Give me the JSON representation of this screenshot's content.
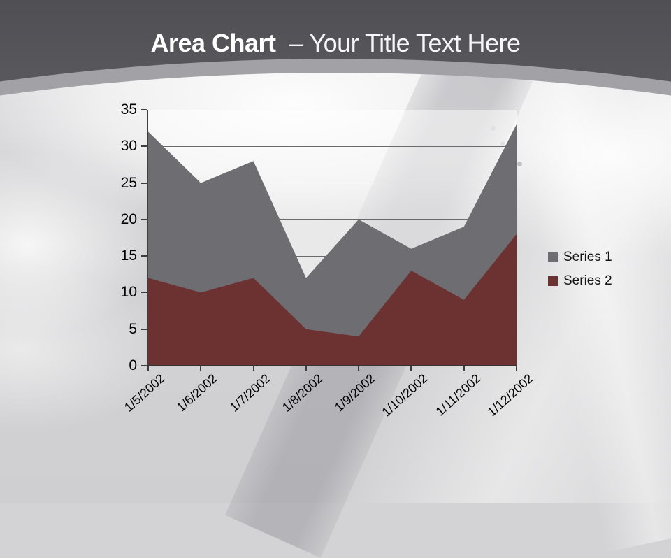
{
  "slide": {
    "title": {
      "bold": "Area Chart",
      "rest": "– Your Title Text Here"
    }
  },
  "chart_data": {
    "type": "area",
    "title": "",
    "categories": [
      "1/5/2002",
      "1/6/2002",
      "1/7/2002",
      "1/8/2002",
      "1/9/2002",
      "1/10/2002",
      "1/11/2002",
      "1/12/2002"
    ],
    "series": [
      {
        "name": "Series 1",
        "color": "#6e6d72",
        "values": [
          32,
          25,
          28,
          12,
          20,
          16,
          19,
          33
        ]
      },
      {
        "name": "Series 2",
        "color": "#6c3232",
        "values": [
          12,
          10,
          12,
          5,
          4,
          13,
          9,
          18
        ]
      }
    ],
    "ylim": [
      0,
      35
    ],
    "ytick_interval": 5,
    "grid": true,
    "legend_position": "right",
    "series_overlap": "overlapping"
  },
  "colors": {
    "series1": "#6e6d72",
    "series2": "#6c3232",
    "title_text": "#ffffff",
    "axis_text": "#000000",
    "gridline": "#6b6b6b",
    "header_dark": "#55555a",
    "background_light": "#d3d3d5"
  }
}
